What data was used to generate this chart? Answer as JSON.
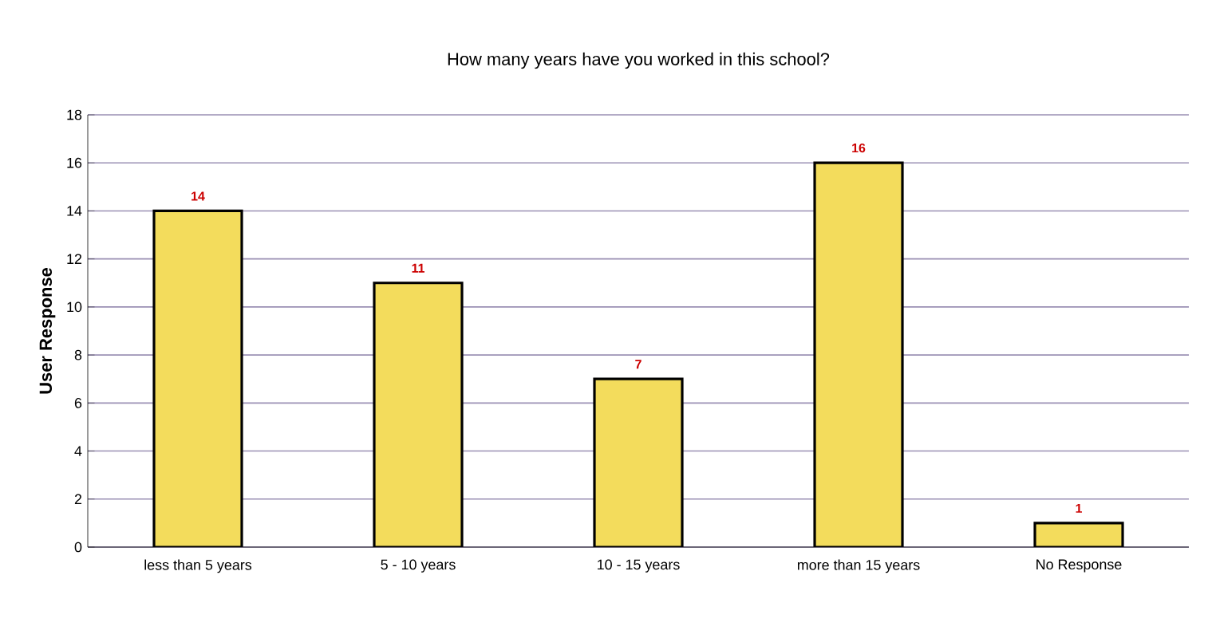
{
  "chart_data": {
    "type": "bar",
    "title": "How many years have you worked in this school?",
    "ylabel": "User Response",
    "categories": [
      "less than 5 years",
      "5 - 10 years",
      "10 - 15 years",
      "more than 15 years",
      "No Response"
    ],
    "values": [
      14,
      11,
      7,
      16,
      1
    ],
    "color": "#f3dc5c",
    "ylim": [
      0,
      18
    ],
    "yticks": [
      0,
      2,
      4,
      6,
      8,
      10,
      12,
      14,
      16,
      18
    ],
    "grid": "y",
    "data_labels": true
  }
}
